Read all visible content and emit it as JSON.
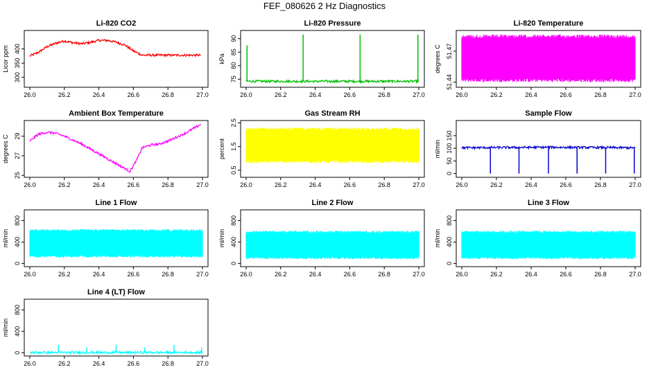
{
  "title": "FEF_080626  2 Hz Diagnostics",
  "chart_data": [
    {
      "name": "li820-co2",
      "type": "line",
      "title": "Li-820 CO2",
      "ylabel": "Licor ppm",
      "color": "#ff0000",
      "xlim": [
        26.0,
        27.0
      ],
      "ylim": [
        265,
        465
      ],
      "yticks": [
        "300",
        "350",
        "400"
      ],
      "yticks_val": [
        300,
        350,
        400
      ],
      "xticks": [
        "26.0",
        "26.2",
        "26.4",
        "26.6",
        "26.8",
        "27.0"
      ],
      "x": [
        26.0,
        26.05,
        26.1,
        26.15,
        26.2,
        26.25,
        26.3,
        26.35,
        26.4,
        26.45,
        26.5,
        26.55,
        26.6,
        26.65,
        26.7,
        26.75,
        26.8,
        26.85,
        26.9,
        26.95,
        26.99
      ],
      "y": [
        375,
        388,
        408,
        420,
        428,
        422,
        418,
        423,
        430,
        430,
        424,
        414,
        393,
        378,
        378,
        378,
        378,
        378,
        378,
        378,
        378
      ]
    },
    {
      "name": "li820-pressure",
      "type": "line",
      "title": "Li-820 Pressure",
      "ylabel": "kPa",
      "color": "#00c000",
      "xlim": [
        26.0,
        27.0
      ],
      "ylim": [
        72,
        93
      ],
      "yticks": [
        "75",
        "80",
        "85",
        "90"
      ],
      "yticks_val": [
        75,
        80,
        85,
        90
      ],
      "xticks": [
        "26.0",
        "26.2",
        "26.4",
        "26.6",
        "26.8",
        "27.0"
      ],
      "x": [
        26.0,
        26.33,
        26.66,
        27.0
      ],
      "y": [
        74.2,
        74.2,
        74.2,
        74.2
      ],
      "spikes": [
        [
          26.005,
          87.5
        ],
        [
          26.33,
          91.5
        ],
        [
          26.66,
          91.5
        ],
        [
          26.995,
          91.5
        ]
      ]
    },
    {
      "name": "li820-temperature",
      "type": "band",
      "title": "Li-820 Temperature",
      "ylabel": "degrees C",
      "color": "#ff00ff",
      "xlim": [
        26.0,
        27.0
      ],
      "ylim": [
        51.435,
        51.49
      ],
      "yticks": [
        "51.44",
        "51.47"
      ],
      "yticks_val": [
        51.44,
        51.47
      ],
      "xticks": [
        "26.0",
        "26.2",
        "26.4",
        "26.6",
        "26.8",
        "27.0"
      ],
      "low": 51.44,
      "high": 51.486
    },
    {
      "name": "ambient-box-temperature",
      "type": "line",
      "title": "Ambient Box Temperature",
      "ylabel": "degrees C",
      "color": "#ff00ff",
      "xlim": [
        26.0,
        27.0
      ],
      "ylim": [
        24.8,
        30.6
      ],
      "yticks": [
        "25",
        "27",
        "29"
      ],
      "yticks_val": [
        25,
        27,
        29
      ],
      "xticks": [
        "26.0",
        "26.2",
        "26.4",
        "26.6",
        "26.8",
        "27.0"
      ],
      "x": [
        26.0,
        26.05,
        26.1,
        26.15,
        26.2,
        26.3,
        26.4,
        26.5,
        26.55,
        26.58,
        26.62,
        26.65,
        26.7,
        26.75,
        26.8,
        26.85,
        26.9,
        26.95,
        26.99
      ],
      "y": [
        28.5,
        29.2,
        29.4,
        29.3,
        29.0,
        28.2,
        27.2,
        26.2,
        25.7,
        25.4,
        26.6,
        27.8,
        28.1,
        28.2,
        28.5,
        28.9,
        29.3,
        29.8,
        30.2
      ]
    },
    {
      "name": "gas-stream-rh",
      "type": "band",
      "title": "Gas Stream RH",
      "ylabel": "percent",
      "color": "#ffff00",
      "xlim": [
        26.0,
        27.0
      ],
      "ylim": [
        0.2,
        2.6
      ],
      "yticks": [
        "0.5",
        "1.5",
        "2.5"
      ],
      "yticks_val": [
        0.5,
        1.5,
        2.5
      ],
      "xticks": [
        "26.0",
        "26.2",
        "26.4",
        "26.6",
        "26.8",
        "27.0"
      ],
      "low": 0.8,
      "high": 2.3
    },
    {
      "name": "sample-flow",
      "type": "line",
      "title": "Sample Flow",
      "ylabel": "ml/min",
      "color": "#0000cc",
      "xlim": [
        26.0,
        27.0
      ],
      "ylim": [
        -15,
        210
      ],
      "yticks": [
        "0",
        "50",
        "100",
        "150"
      ],
      "yticks_val": [
        0,
        50,
        100,
        150
      ],
      "xticks": [
        "26.0",
        "26.2",
        "26.4",
        "26.6",
        "26.8",
        "27.0"
      ],
      "x": [
        26.0,
        26.5,
        27.0
      ],
      "y": [
        102,
        104,
        102
      ],
      "dips": [
        26.165,
        26.33,
        26.5,
        26.665,
        26.83,
        26.995
      ]
    },
    {
      "name": "line1-flow",
      "type": "band",
      "title": "Line 1 Flow",
      "ylabel": "ml/min",
      "color": "#00ffff",
      "xlim": [
        26.0,
        27.0
      ],
      "ylim": [
        -60,
        1000
      ],
      "yticks": [
        "0",
        "400",
        "800"
      ],
      "yticks_val": [
        0,
        400,
        800
      ],
      "xticks": [
        "26.0",
        "26.2",
        "26.4",
        "26.6",
        "26.8",
        "27.0"
      ],
      "low": 110,
      "high": 640
    },
    {
      "name": "line2-flow",
      "type": "band",
      "title": "Line 2 Flow",
      "ylabel": "ml/min",
      "color": "#00ffff",
      "xlim": [
        26.0,
        27.0
      ],
      "ylim": [
        -60,
        1000
      ],
      "yticks": [
        "0",
        "400",
        "800"
      ],
      "yticks_val": [
        0,
        400,
        800
      ],
      "xticks": [
        "26.0",
        "26.2",
        "26.4",
        "26.6",
        "26.8",
        "27.0"
      ],
      "low": 80,
      "high": 610
    },
    {
      "name": "line3-flow",
      "type": "band",
      "title": "Line 3 Flow",
      "ylabel": "ml/min",
      "color": "#00ffff",
      "xlim": [
        26.0,
        27.0
      ],
      "ylim": [
        -60,
        1000
      ],
      "yticks": [
        "0",
        "400",
        "800"
      ],
      "yticks_val": [
        0,
        400,
        800
      ],
      "xticks": [
        "26.0",
        "26.2",
        "26.4",
        "26.6",
        "26.8",
        "27.0"
      ],
      "low": 80,
      "high": 610
    },
    {
      "name": "line4-flow",
      "type": "line",
      "title": "Line 4 (LT) Flow",
      "ylabel": "ml/min",
      "color": "#00ffff",
      "xlim": [
        26.0,
        27.0
      ],
      "ylim": [
        -60,
        1000
      ],
      "yticks": [
        "0",
        "400",
        "800"
      ],
      "yticks_val": [
        0,
        400,
        800
      ],
      "xticks": [
        "26.0",
        "26.2",
        "26.4",
        "26.6",
        "26.8",
        "27.0"
      ],
      "x": [
        26.0,
        27.0
      ],
      "y": [
        5,
        5
      ],
      "spikes": [
        [
          26.165,
          150
        ],
        [
          26.33,
          100
        ],
        [
          26.5,
          150
        ],
        [
          26.665,
          100
        ],
        [
          26.835,
          150
        ],
        [
          26.995,
          100
        ]
      ]
    }
  ]
}
